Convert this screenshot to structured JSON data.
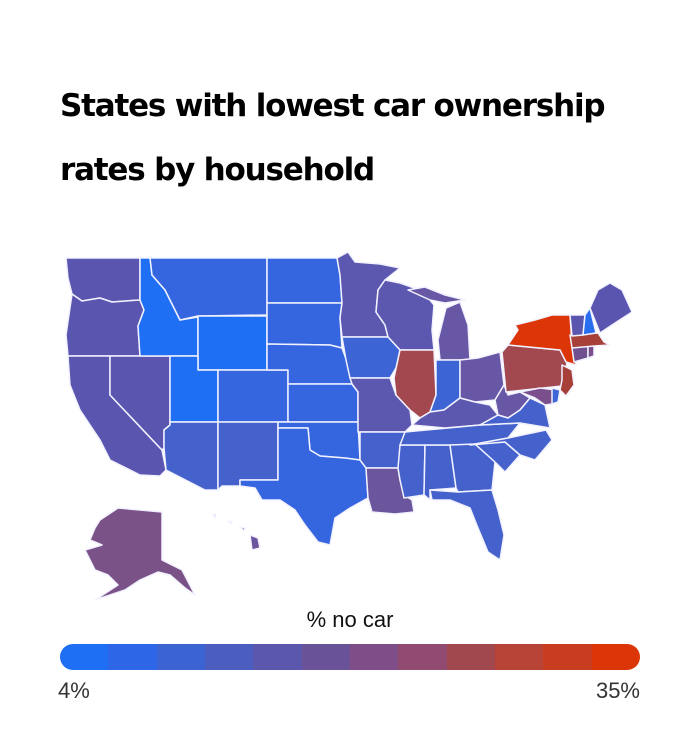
{
  "title": "States with lowest car ownership rates by household",
  "legend": {
    "title": "% no car",
    "min_label": "4%",
    "max_label": "35%",
    "min": 4,
    "max": 35,
    "colors": [
      "#1f6ff5",
      "#2d66e6",
      "#3c63d2",
      "#4b5dbf",
      "#5a57ac",
      "#6a5298",
      "#7f4e88",
      "#924b70",
      "#a1484f",
      "#b84438",
      "#c83c20",
      "#dc3508"
    ]
  },
  "chart_data": {
    "type": "heatmap",
    "subtype": "choropleth",
    "title": "States with lowest car ownership rates by household",
    "legend_title": "% no car",
    "range": [
      4,
      35
    ],
    "color_scale": [
      "#1f6ff5",
      "#dc3508"
    ],
    "states": [
      {
        "state": "New York",
        "color": "#dc3508",
        "bin": "highest"
      },
      {
        "state": "Massachusetts",
        "color": "#a8403a",
        "bin": "high"
      },
      {
        "state": "Pennsylvania",
        "color": "#a24950",
        "bin": "high"
      },
      {
        "state": "New Jersey",
        "color": "#a8403a",
        "bin": "high"
      },
      {
        "state": "Illinois",
        "color": "#a4484f",
        "bin": "high"
      },
      {
        "state": "Alaska",
        "color": "#7a5288",
        "bin": "mid"
      },
      {
        "state": "Louisiana",
        "color": "#6b559c",
        "bin": "mid"
      },
      {
        "state": "Maryland",
        "color": "#7a4f8c",
        "bin": "mid"
      },
      {
        "state": "Rhode Island",
        "color": "#7a4f8c",
        "bin": "mid"
      },
      {
        "state": "Connecticut",
        "color": "#71508f",
        "bin": "mid"
      },
      {
        "state": "Hawaii",
        "color": "#6b559c",
        "bin": "mid"
      },
      {
        "state": "Delaware",
        "color": "#3e66d6",
        "bin": "low"
      },
      {
        "state": "Ohio",
        "color": "#6757a4",
        "bin": "mid-low"
      },
      {
        "state": "Michigan",
        "color": "#6757a4",
        "bin": "mid-low"
      },
      {
        "state": "West Virginia",
        "color": "#6757a4",
        "bin": "mid-low"
      },
      {
        "state": "Kentucky",
        "color": "#5c58b0",
        "bin": "mid-low"
      },
      {
        "state": "Wisconsin",
        "color": "#5c58b0",
        "bin": "mid-low"
      },
      {
        "state": "Minnesota",
        "color": "#5c58b0",
        "bin": "mid-low"
      },
      {
        "state": "Missouri",
        "color": "#5c58b0",
        "bin": "mid-low"
      },
      {
        "state": "Washington",
        "color": "#5a56b0",
        "bin": "mid-low"
      },
      {
        "state": "Oregon",
        "color": "#5a56b0",
        "bin": "mid-low"
      },
      {
        "state": "California",
        "color": "#5a56b0",
        "bin": "mid-low"
      },
      {
        "state": "Nevada",
        "color": "#5a56b0",
        "bin": "mid-low"
      },
      {
        "state": "Maine",
        "color": "#5a56b0",
        "bin": "mid-low"
      },
      {
        "state": "Vermont",
        "color": "#5a56b0",
        "bin": "mid-low"
      },
      {
        "state": "Montana",
        "color": "#3566e0",
        "bin": "low"
      },
      {
        "state": "Idaho",
        "color": "#1f6ff5",
        "bin": "lowest"
      },
      {
        "state": "Utah",
        "color": "#1f6ff5",
        "bin": "lowest"
      },
      {
        "state": "Wyoming",
        "color": "#1f6ff5",
        "bin": "lowest"
      },
      {
        "state": "New Hampshire",
        "color": "#2a6ef0",
        "bin": "lowest"
      },
      {
        "state": "Colorado",
        "color": "#3566e0",
        "bin": "low"
      },
      {
        "state": "Arizona",
        "color": "#4562cc",
        "bin": "low"
      },
      {
        "state": "New Mexico",
        "color": "#4562cc",
        "bin": "low"
      },
      {
        "state": "North Dakota",
        "color": "#3566e0",
        "bin": "low"
      },
      {
        "state": "South Dakota",
        "color": "#3566e0",
        "bin": "low"
      },
      {
        "state": "Nebraska",
        "color": "#3566e0",
        "bin": "low"
      },
      {
        "state": "Kansas",
        "color": "#3566e0",
        "bin": "low"
      },
      {
        "state": "Oklahoma",
        "color": "#3566e0",
        "bin": "low"
      },
      {
        "state": "Texas",
        "color": "#3566e0",
        "bin": "low"
      },
      {
        "state": "Iowa",
        "color": "#3d64d4",
        "bin": "low"
      },
      {
        "state": "Arkansas",
        "color": "#4562cc",
        "bin": "low"
      },
      {
        "state": "Indiana",
        "color": "#3d64d4",
        "bin": "low"
      },
      {
        "state": "Tennessee",
        "color": "#4562cc",
        "bin": "low"
      },
      {
        "state": "Mississippi",
        "color": "#4562cc",
        "bin": "low"
      },
      {
        "state": "Alabama",
        "color": "#4562cc",
        "bin": "low"
      },
      {
        "state": "Georgia",
        "color": "#4562cc",
        "bin": "low"
      },
      {
        "state": "Florida",
        "color": "#4562cc",
        "bin": "low"
      },
      {
        "state": "South Carolina",
        "color": "#4562cc",
        "bin": "low"
      },
      {
        "state": "North Carolina",
        "color": "#4562cc",
        "bin": "low"
      },
      {
        "state": "Virginia",
        "color": "#4562cc",
        "bin": "low"
      }
    ]
  }
}
